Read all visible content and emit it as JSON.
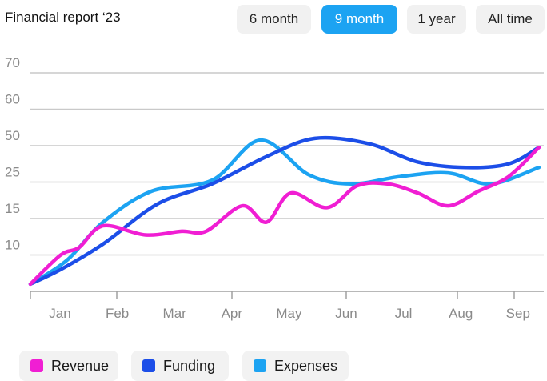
{
  "header": {
    "title": "Financial report ‘23",
    "ranges": [
      "6 month",
      "9 month",
      "1 year",
      "All time"
    ],
    "active_range": "9 month"
  },
  "colors": {
    "revenue": "#f01ed3",
    "funding": "#1c4ee8",
    "expenses": "#1ca3f2",
    "active_button": "#1ca3f2",
    "grid": "#c9c9c9"
  },
  "chart_data": {
    "type": "line",
    "categories": [
      "Jan",
      "Feb",
      "Mar",
      "Apr",
      "May",
      "Jun",
      "Jul",
      "Aug",
      "Sep"
    ],
    "y_tick_labels": [
      "10",
      "15",
      "25",
      "50",
      "60",
      "70"
    ],
    "grid": true,
    "legend_position": "bottom-left",
    "series": [
      {
        "name": "Revenue",
        "color": "#f01ed3",
        "x": [
          0,
          0.5,
          0.8,
          1.2,
          1.9,
          2.5,
          2.9,
          3.5,
          3.9,
          4.3,
          4.9,
          5.4,
          5.9,
          6.4,
          6.9,
          7.4,
          7.9,
          8.4
        ],
        "y": [
          0.2,
          1.0,
          1.2,
          1.8,
          1.55,
          1.65,
          1.65,
          2.35,
          1.9,
          2.7,
          2.3,
          2.9,
          2.95,
          2.7,
          2.35,
          2.75,
          3.15,
          3.95
        ]
      },
      {
        "name": "Funding",
        "color": "#1c4ee8",
        "x": [
          0,
          0.5,
          1.2,
          2.1,
          3.0,
          3.9,
          4.7,
          5.6,
          6.4,
          7.2,
          7.9,
          8.4
        ],
        "y": [
          0.2,
          0.6,
          1.3,
          2.4,
          2.95,
          3.7,
          4.2,
          4.05,
          3.55,
          3.4,
          3.5,
          3.95
        ]
      },
      {
        "name": "Expenses",
        "color": "#1ca3f2",
        "x": [
          0,
          0.6,
          1.2,
          2.0,
          3.0,
          3.8,
          4.6,
          5.3,
          6.1,
          6.9,
          7.6,
          8.4
        ],
        "y": [
          0.2,
          0.85,
          1.9,
          2.75,
          3.05,
          4.15,
          3.2,
          2.95,
          3.15,
          3.25,
          2.95,
          3.4
        ]
      }
    ]
  }
}
